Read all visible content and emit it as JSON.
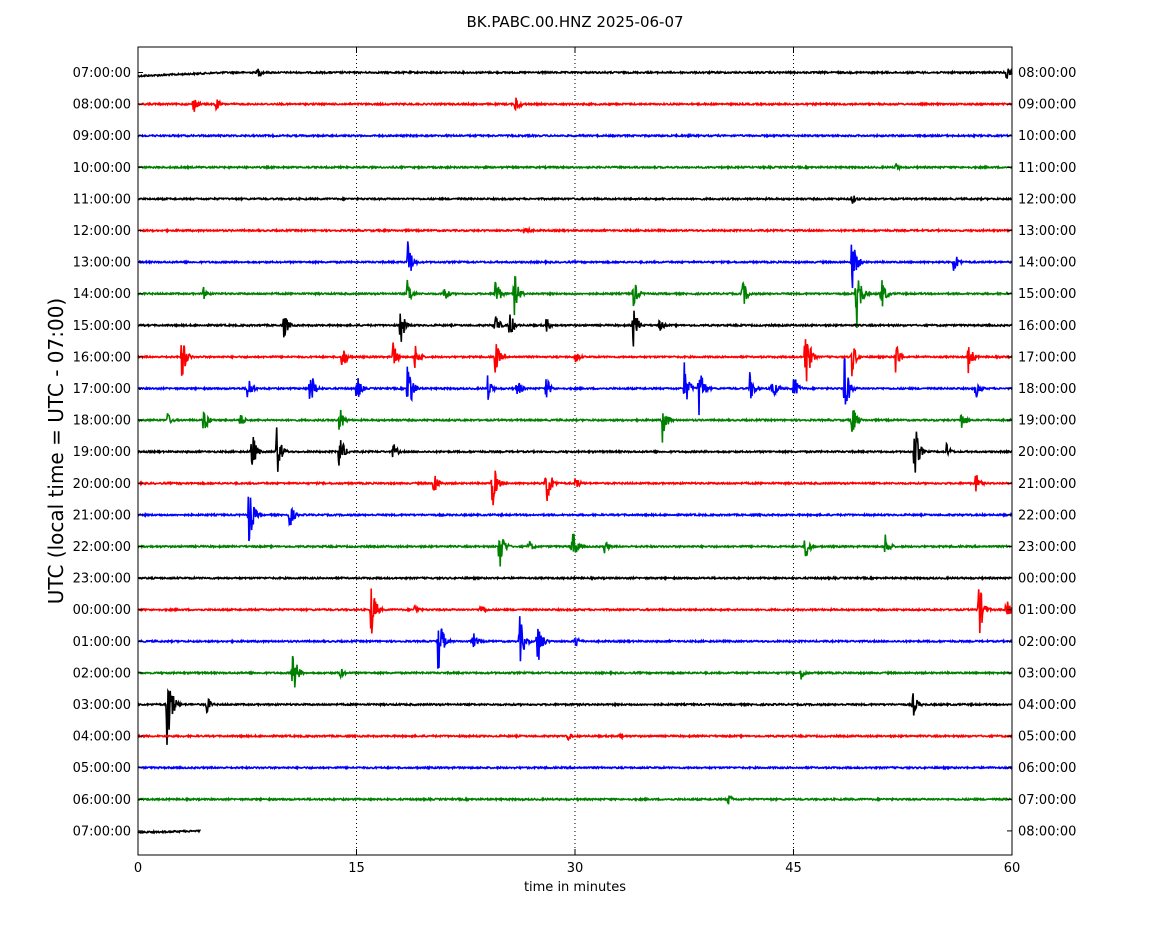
{
  "chart_data": {
    "type": "line",
    "title": "BK.PABC.00.HNZ 2025-06-07",
    "xlabel": "time in minutes",
    "ylabel": "UTC (local time = UTC - 07:00)",
    "xlim": [
      0,
      60
    ],
    "x_ticks": [
      "0",
      "15",
      "30",
      "45",
      "60"
    ],
    "grid": "vertical dotted at 15, 30, 45",
    "series_colors": [
      "#000000",
      "#ff0000",
      "#0000ff",
      "#008000"
    ],
    "left_labels": [
      "07:00:00",
      "08:00:00",
      "09:00:00",
      "10:00:00",
      "11:00:00",
      "12:00:00",
      "13:00:00",
      "14:00:00",
      "15:00:00",
      "16:00:00",
      "17:00:00",
      "18:00:00",
      "19:00:00",
      "20:00:00",
      "21:00:00",
      "22:00:00",
      "23:00:00",
      "00:00:00",
      "01:00:00",
      "02:00:00",
      "03:00:00",
      "04:00:00",
      "05:00:00",
      "06:00:00",
      "07:00:00"
    ],
    "right_labels": [
      "08:00:00",
      "09:00:00",
      "10:00:00",
      "11:00:00",
      "12:00:00",
      "13:00:00",
      "14:00:00",
      "15:00:00",
      "16:00:00",
      "17:00:00",
      "18:00:00",
      "19:00:00",
      "20:00:00",
      "21:00:00",
      "22:00:00",
      "23:00:00",
      "00:00:00",
      "01:00:00",
      "02:00:00",
      "03:00:00",
      "04:00:00",
      "05:00:00",
      "06:00:00",
      "07:00:00",
      "08:00:00"
    ],
    "events": [
      {
        "row": 0,
        "t": 8.2,
        "a": 0.4
      },
      {
        "row": 0,
        "t": 59.6,
        "a": 0.5
      },
      {
        "row": 1,
        "t": 3.8,
        "a": 0.6
      },
      {
        "row": 1,
        "t": 5.3,
        "a": 0.5
      },
      {
        "row": 1,
        "t": 25.9,
        "a": 0.6
      },
      {
        "row": 3,
        "t": 52.0,
        "a": 0.3
      },
      {
        "row": 4,
        "t": 49.0,
        "a": 0.4
      },
      {
        "row": 5,
        "t": 26.5,
        "a": 0.5
      },
      {
        "row": 6,
        "t": 18.5,
        "a": 1.5
      },
      {
        "row": 6,
        "t": 49.0,
        "a": 2.0
      },
      {
        "row": 6,
        "t": 56.0,
        "a": 0.8
      },
      {
        "row": 7,
        "t": 4.5,
        "a": 0.4
      },
      {
        "row": 7,
        "t": 18.5,
        "a": 1.0
      },
      {
        "row": 7,
        "t": 21.0,
        "a": 0.6
      },
      {
        "row": 7,
        "t": 24.5,
        "a": 1.3
      },
      {
        "row": 7,
        "t": 25.8,
        "a": 1.5
      },
      {
        "row": 7,
        "t": 34.0,
        "a": 1.0
      },
      {
        "row": 7,
        "t": 41.5,
        "a": 1.0
      },
      {
        "row": 7,
        "t": 49.3,
        "a": 2.5
      },
      {
        "row": 7,
        "t": 51.0,
        "a": 1.2
      },
      {
        "row": 8,
        "t": 10.0,
        "a": 0.9
      },
      {
        "row": 8,
        "t": 18.0,
        "a": 1.3
      },
      {
        "row": 8,
        "t": 24.5,
        "a": 0.9
      },
      {
        "row": 8,
        "t": 25.5,
        "a": 1.0
      },
      {
        "row": 8,
        "t": 28.0,
        "a": 0.5
      },
      {
        "row": 8,
        "t": 34.0,
        "a": 1.3
      },
      {
        "row": 8,
        "t": 35.8,
        "a": 0.5
      },
      {
        "row": 9,
        "t": 3.0,
        "a": 1.5
      },
      {
        "row": 9,
        "t": 14.0,
        "a": 0.9
      },
      {
        "row": 9,
        "t": 17.5,
        "a": 0.9
      },
      {
        "row": 9,
        "t": 19.0,
        "a": 0.9
      },
      {
        "row": 9,
        "t": 24.5,
        "a": 1.2
      },
      {
        "row": 9,
        "t": 30.0,
        "a": 0.5
      },
      {
        "row": 9,
        "t": 45.8,
        "a": 2.5
      },
      {
        "row": 9,
        "t": 49.0,
        "a": 1.2
      },
      {
        "row": 9,
        "t": 52.0,
        "a": 1.2
      },
      {
        "row": 9,
        "t": 57.0,
        "a": 1.0
      },
      {
        "row": 10,
        "t": 7.5,
        "a": 1.0
      },
      {
        "row": 10,
        "t": 11.8,
        "a": 1.4
      },
      {
        "row": 10,
        "t": 15.0,
        "a": 1.0
      },
      {
        "row": 10,
        "t": 18.5,
        "a": 2.2
      },
      {
        "row": 10,
        "t": 24.0,
        "a": 0.8
      },
      {
        "row": 10,
        "t": 26.0,
        "a": 0.7
      },
      {
        "row": 10,
        "t": 28.0,
        "a": 0.8
      },
      {
        "row": 10,
        "t": 37.5,
        "a": 1.5
      },
      {
        "row": 10,
        "t": 38.5,
        "a": 2.0
      },
      {
        "row": 10,
        "t": 42.0,
        "a": 1.0
      },
      {
        "row": 10,
        "t": 43.5,
        "a": 1.0
      },
      {
        "row": 10,
        "t": 45.0,
        "a": 1.0
      },
      {
        "row": 10,
        "t": 48.5,
        "a": 2.0
      },
      {
        "row": 10,
        "t": 57.5,
        "a": 0.7
      },
      {
        "row": 11,
        "t": 2.0,
        "a": 0.5
      },
      {
        "row": 11,
        "t": 4.5,
        "a": 1.0
      },
      {
        "row": 11,
        "t": 7.0,
        "a": 0.5
      },
      {
        "row": 11,
        "t": 13.8,
        "a": 1.0
      },
      {
        "row": 11,
        "t": 36.0,
        "a": 1.3
      },
      {
        "row": 11,
        "t": 49.0,
        "a": 1.2
      },
      {
        "row": 11,
        "t": 56.5,
        "a": 0.7
      },
      {
        "row": 12,
        "t": 7.8,
        "a": 1.4
      },
      {
        "row": 12,
        "t": 9.5,
        "a": 1.8
      },
      {
        "row": 12,
        "t": 13.8,
        "a": 1.4
      },
      {
        "row": 12,
        "t": 17.5,
        "a": 0.6
      },
      {
        "row": 12,
        "t": 53.3,
        "a": 2.0
      },
      {
        "row": 12,
        "t": 55.5,
        "a": 0.5
      },
      {
        "row": 13,
        "t": 20.3,
        "a": 0.9
      },
      {
        "row": 13,
        "t": 24.3,
        "a": 1.8
      },
      {
        "row": 13,
        "t": 28.0,
        "a": 2.0
      },
      {
        "row": 13,
        "t": 30.0,
        "a": 0.5
      },
      {
        "row": 13,
        "t": 57.5,
        "a": 0.7
      },
      {
        "row": 14,
        "t": 7.6,
        "a": 2.0
      },
      {
        "row": 14,
        "t": 10.4,
        "a": 0.9
      },
      {
        "row": 15,
        "t": 24.8,
        "a": 1.7
      },
      {
        "row": 15,
        "t": 26.8,
        "a": 0.5
      },
      {
        "row": 15,
        "t": 29.8,
        "a": 1.3
      },
      {
        "row": 15,
        "t": 32.0,
        "a": 0.5
      },
      {
        "row": 15,
        "t": 45.8,
        "a": 1.0
      },
      {
        "row": 15,
        "t": 51.3,
        "a": 0.8
      },
      {
        "row": 17,
        "t": 16.0,
        "a": 1.9
      },
      {
        "row": 17,
        "t": 19.0,
        "a": 0.4
      },
      {
        "row": 17,
        "t": 23.5,
        "a": 0.5
      },
      {
        "row": 17,
        "t": 57.7,
        "a": 2.0
      },
      {
        "row": 17,
        "t": 59.6,
        "a": 0.7
      },
      {
        "row": 18,
        "t": 20.6,
        "a": 2.2
      },
      {
        "row": 18,
        "t": 23.0,
        "a": 0.6
      },
      {
        "row": 18,
        "t": 26.2,
        "a": 1.6
      },
      {
        "row": 18,
        "t": 27.4,
        "a": 1.8
      },
      {
        "row": 18,
        "t": 30.0,
        "a": 0.5
      },
      {
        "row": 19,
        "t": 10.6,
        "a": 1.8
      },
      {
        "row": 19,
        "t": 13.8,
        "a": 0.5
      },
      {
        "row": 19,
        "t": 45.5,
        "a": 0.5
      },
      {
        "row": 20,
        "t": 2.0,
        "a": 3.2
      },
      {
        "row": 20,
        "t": 4.7,
        "a": 0.6
      },
      {
        "row": 20,
        "t": 53.2,
        "a": 0.8
      },
      {
        "row": 21,
        "t": 29.5,
        "a": 0.3
      },
      {
        "row": 21,
        "t": 33.0,
        "a": 0.3
      },
      {
        "row": 23,
        "t": 40.5,
        "a": 0.4
      }
    ]
  }
}
